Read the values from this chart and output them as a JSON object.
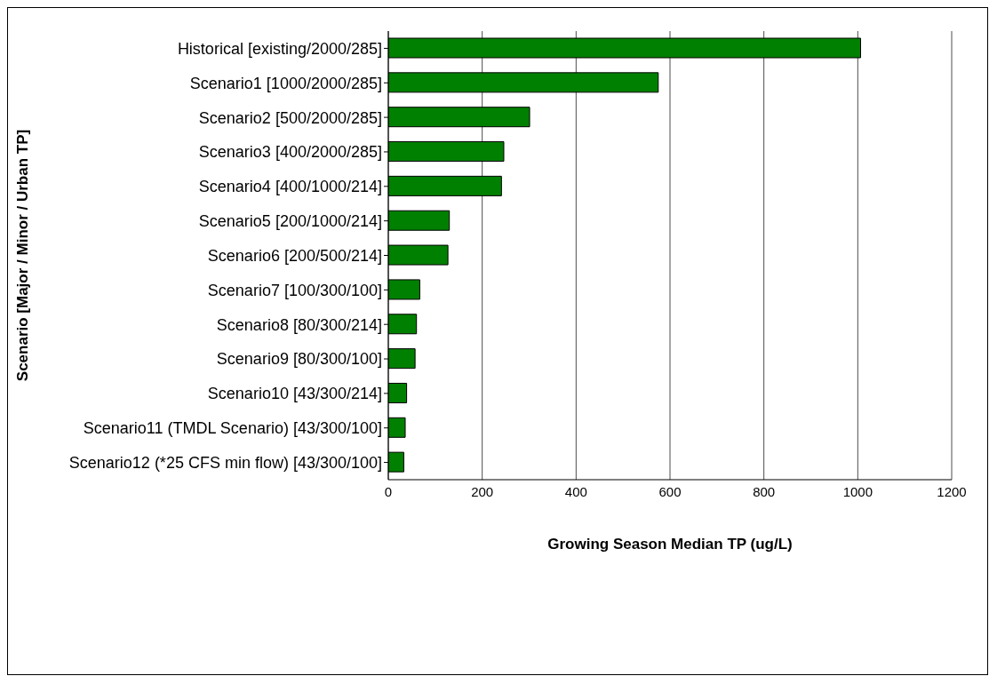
{
  "chart_data": {
    "type": "bar",
    "orientation": "horizontal",
    "xlabel": "Growing Season Median TP (ug/L)",
    "ylabel": "Scenario [Major / Minor / Urban TP]",
    "categories": [
      "Historical [existing/2000/285]",
      "Scenario1 [1000/2000/285]",
      "Scenario2 [500/2000/285]",
      "Scenario3 [400/2000/285]",
      "Scenario4 [400/1000/214]",
      "Scenario5 [200/1000/214]",
      "Scenario6 [200/500/214]",
      "Scenario7 [100/300/100]",
      "Scenario8 [80/300/214]",
      "Scenario9 [80/300/100]",
      "Scenario10 [43/300/214]",
      "Scenario11 (TMDL Scenario) [43/300/100]",
      "Scenario12 (*25 CFS min flow) [43/300/100]"
    ],
    "values": [
      1006,
      575,
      301,
      246,
      241,
      130,
      127,
      67,
      60,
      57,
      39,
      36,
      33
    ],
    "color": "#008000",
    "xlim": [
      0,
      1200
    ],
    "xticks": [
      0,
      200,
      400,
      600,
      800,
      1000,
      1200
    ],
    "grid": "x",
    "legend": false
  }
}
